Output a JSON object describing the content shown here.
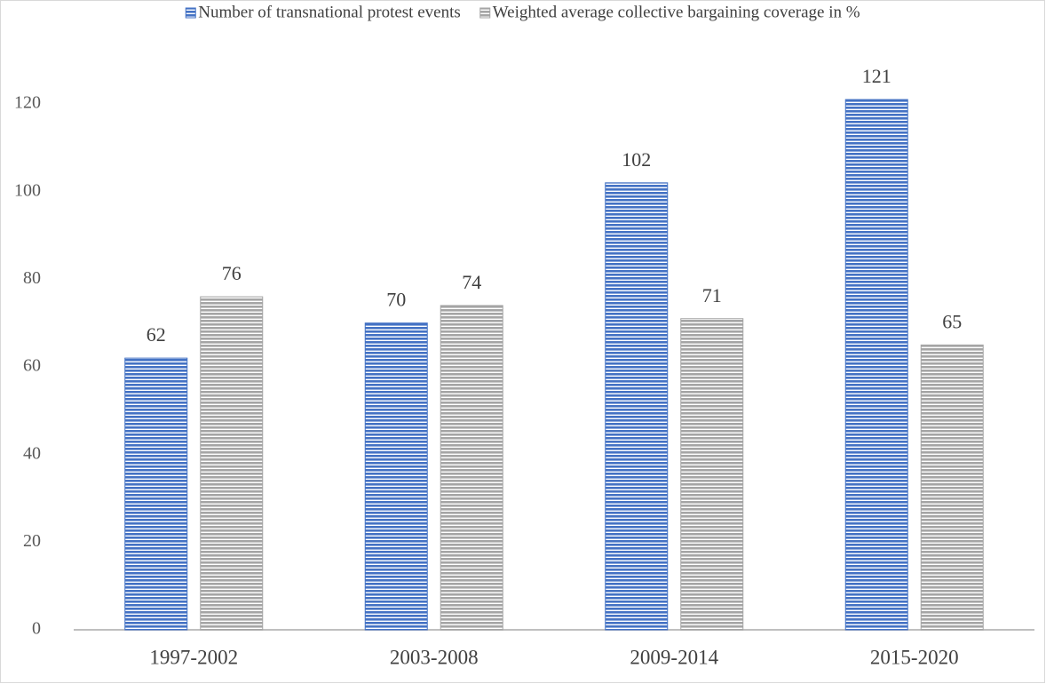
{
  "chart_data": {
    "type": "bar",
    "categories": [
      "1997-2002",
      "2003-2008",
      "2009-2014",
      "2015-2020"
    ],
    "series": [
      {
        "name": "Number of transnational protest events",
        "color": "#4472c4",
        "values": [
          62,
          70,
          102,
          121
        ]
      },
      {
        "name": "Weighted average collective bargaining coverage in %",
        "color": "#a5a5a5",
        "values": [
          76,
          74,
          71,
          65
        ]
      }
    ],
    "ylim": [
      0,
      120
    ],
    "yticks": [
      0,
      20,
      40,
      60,
      80,
      100,
      120
    ],
    "grid": false,
    "legend": "top"
  }
}
